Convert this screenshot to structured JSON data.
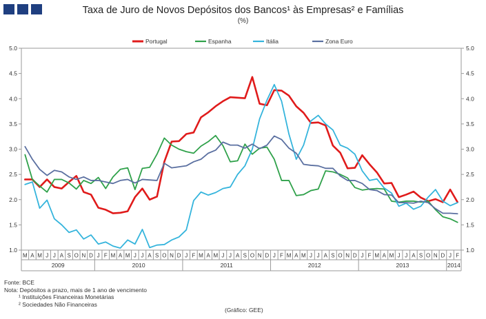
{
  "header": {
    "title": "Taxa de Juro de Novos Depósitos dos Bancos¹ às Empresas² e Famílias",
    "unit": "(%)"
  },
  "notes": {
    "source": "Fonte: BCE",
    "note": "Nota: Depósitos a prazo, mais de 1 ano de vencimento",
    "footnote1": "¹ Instituições Financeiras Monetárias",
    "footnote2": "² Sociedades  Não Financeiras",
    "credit": "(Gráfico: GEE)"
  },
  "chart_data": {
    "type": "line",
    "title": "Taxa de Juro de Novos Depósitos dos Bancos¹ às Empresas² e Famílias",
    "ylabel": "(%)",
    "ylim": [
      1.0,
      5.0
    ],
    "yticks": [
      "1.0",
      "1.5",
      "2.0",
      "2.5",
      "3.0",
      "3.5",
      "4.0",
      "4.5",
      "5.0"
    ],
    "legend_position": "top",
    "months": [
      "M",
      "A",
      "M",
      "J",
      "J",
      "A",
      "S",
      "O",
      "N",
      "D",
      "J",
      "F",
      "M",
      "A",
      "M",
      "J",
      "J",
      "A",
      "S",
      "O",
      "N",
      "D",
      "J",
      "F",
      "M",
      "A",
      "M",
      "J",
      "J",
      "A",
      "S",
      "O",
      "N",
      "D",
      "J",
      "F",
      "M",
      "A",
      "M",
      "J",
      "J",
      "A",
      "S",
      "O",
      "N",
      "D",
      "J",
      "F",
      "M",
      "A",
      "M",
      "J",
      "J",
      "A",
      "S",
      "O",
      "N",
      "D",
      "J",
      "F"
    ],
    "years": [
      {
        "label": "2009",
        "start": 0,
        "count": 10
      },
      {
        "label": "2010",
        "start": 10,
        "count": 12
      },
      {
        "label": "2011",
        "start": 22,
        "count": 12
      },
      {
        "label": "2012",
        "start": 34,
        "count": 12
      },
      {
        "label": "2013",
        "start": 46,
        "count": 12
      },
      {
        "label": "2014",
        "start": 58,
        "count": 2
      }
    ],
    "series": [
      {
        "name": "Portugal",
        "color": "#e01b1b",
        "width": 2.6,
        "values": [
          2.4,
          2.4,
          2.25,
          2.4,
          2.25,
          2.22,
          2.35,
          2.47,
          2.15,
          2.1,
          1.84,
          1.8,
          1.73,
          1.74,
          1.77,
          2.05,
          2.22,
          2.0,
          2.06,
          2.75,
          3.15,
          3.16,
          3.3,
          3.33,
          3.63,
          3.73,
          3.85,
          3.95,
          4.03,
          4.02,
          4.01,
          4.43,
          3.9,
          3.87,
          4.17,
          4.16,
          4.06,
          3.85,
          3.72,
          3.52,
          3.53,
          3.47,
          3.07,
          2.93,
          2.62,
          2.63,
          2.88,
          2.7,
          2.54,
          2.32,
          2.33,
          2.05,
          2.1,
          2.16,
          2.04,
          1.97,
          2.01,
          1.95,
          2.2,
          1.95
        ]
      },
      {
        "name": "Espanha",
        "color": "#2fa14a",
        "width": 1.8,
        "values": [
          2.89,
          2.4,
          2.27,
          2.15,
          2.4,
          2.4,
          2.33,
          2.21,
          2.38,
          2.32,
          2.44,
          2.22,
          2.45,
          2.6,
          2.63,
          2.2,
          2.62,
          2.64,
          2.9,
          3.22,
          3.08,
          3.0,
          2.95,
          2.92,
          3.06,
          3.15,
          3.27,
          3.07,
          2.75,
          2.77,
          3.1,
          2.9,
          3.02,
          3.04,
          2.8,
          2.38,
          2.38,
          2.08,
          2.1,
          2.18,
          2.21,
          2.57,
          2.55,
          2.5,
          2.43,
          2.24,
          2.19,
          2.21,
          2.22,
          2.21,
          1.97,
          1.95,
          1.97,
          1.97,
          1.95,
          1.97,
          1.8,
          1.66,
          1.62,
          1.55
        ]
      },
      {
        "name": "Itália",
        "color": "#34b4dc",
        "width": 1.8,
        "values": [
          2.3,
          2.35,
          1.83,
          1.99,
          1.62,
          1.5,
          1.35,
          1.4,
          1.22,
          1.3,
          1.12,
          1.16,
          1.08,
          1.04,
          1.2,
          1.12,
          1.41,
          1.05,
          1.1,
          1.11,
          1.2,
          1.26,
          1.4,
          1.98,
          2.15,
          2.09,
          2.14,
          2.22,
          2.25,
          2.5,
          2.67,
          3.0,
          3.6,
          3.97,
          4.28,
          3.95,
          3.3,
          2.8,
          3.08,
          3.56,
          3.67,
          3.5,
          3.38,
          3.08,
          3.02,
          2.9,
          2.57,
          2.38,
          2.41,
          2.23,
          2.13,
          1.87,
          1.93,
          1.81,
          1.87,
          2.05,
          2.2,
          1.97,
          1.88,
          1.94
        ]
      },
      {
        "name": "Zona Euro",
        "color": "#5a6fa0",
        "width": 1.8,
        "values": [
          3.05,
          2.8,
          2.6,
          2.48,
          2.58,
          2.55,
          2.45,
          2.4,
          2.45,
          2.38,
          2.38,
          2.35,
          2.32,
          2.38,
          2.4,
          2.33,
          2.4,
          2.39,
          2.38,
          2.72,
          2.63,
          2.65,
          2.67,
          2.75,
          2.8,
          2.92,
          2.98,
          3.14,
          3.08,
          3.08,
          3.02,
          3.1,
          3.01,
          3.08,
          3.26,
          3.19,
          3.02,
          2.92,
          2.7,
          2.68,
          2.67,
          2.62,
          2.62,
          2.47,
          2.38,
          2.38,
          2.32,
          2.2,
          2.18,
          2.1,
          2.09,
          1.94,
          1.94,
          1.93,
          1.97,
          1.94,
          1.82,
          1.73,
          1.73,
          1.72
        ]
      }
    ]
  }
}
